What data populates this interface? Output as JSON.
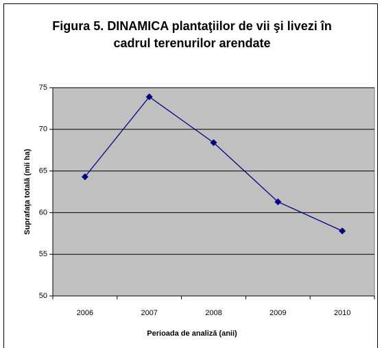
{
  "chart_data": {
    "type": "line",
    "title": "Figura 5. DINAMICA plantaţiilor de vii şi livezi în cadrul terenurilor arendate",
    "xlabel": "Perioada de analiză (anii)",
    "ylabel": "Suprafaţa totală (mii ha)",
    "categories": [
      "2006",
      "2007",
      "2008",
      "2009",
      "2010"
    ],
    "series": [
      {
        "name": "Suprafaţa totală",
        "color": "#000080",
        "values": [
          64.3,
          73.9,
          68.4,
          61.3,
          57.8
        ]
      }
    ],
    "ylim": [
      50,
      75
    ],
    "yticks": [
      50,
      55,
      60,
      65,
      70,
      75
    ],
    "grid": true
  }
}
